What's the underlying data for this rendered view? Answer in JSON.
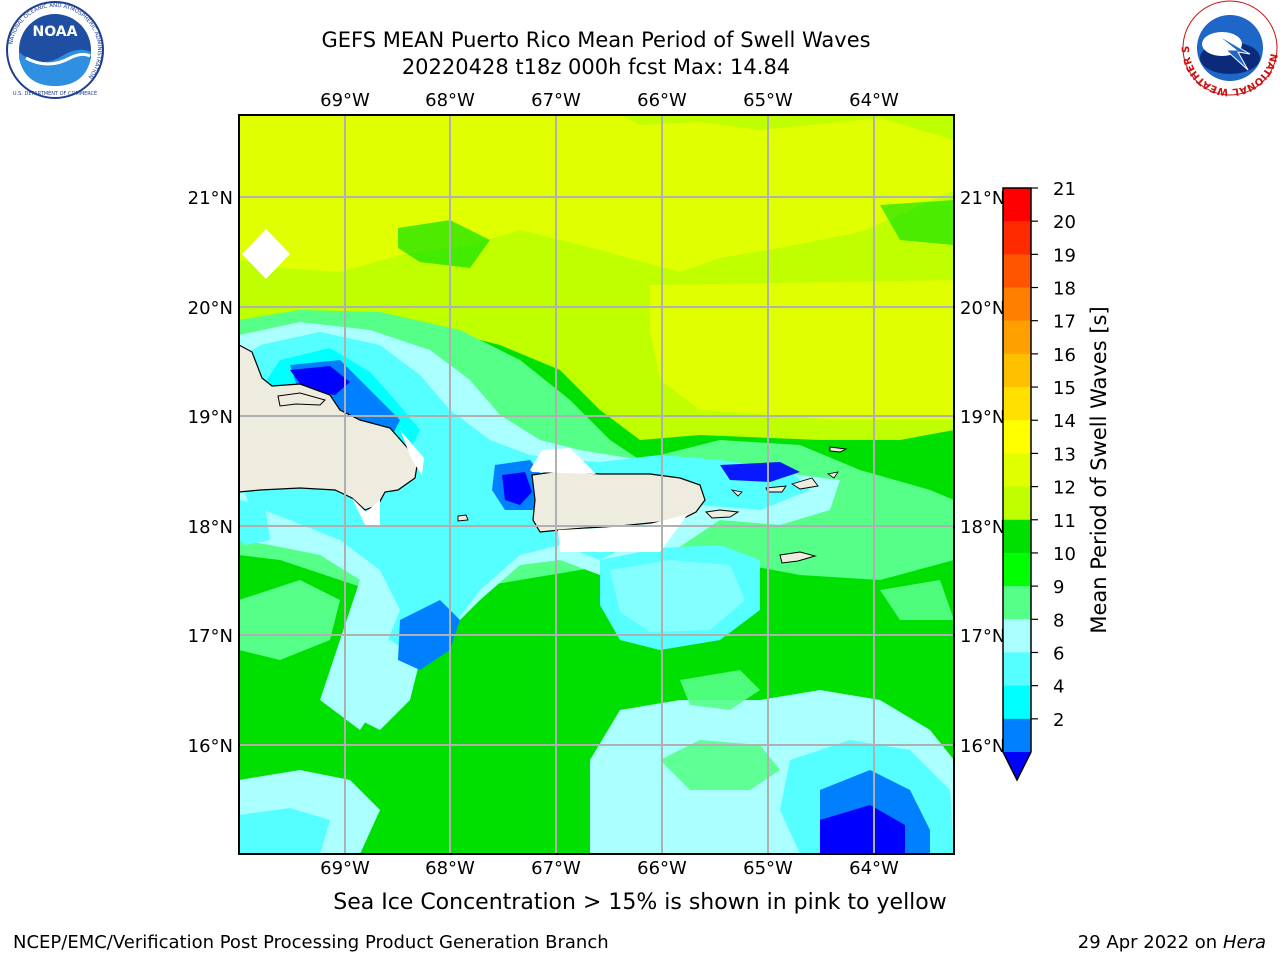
{
  "header": {
    "title_line1": "GEFS MEAN Puerto Rico Mean Period of Swell Waves",
    "title_line2": "20220428 t18z 000h fcst   Max: 14.84"
  },
  "logos": {
    "left": {
      "text": "NOAA",
      "ring_text": "NATIONAL OCEANIC AND ATMOSPHERIC ADMINISTRATION",
      "bottom_text": "U.S. DEPARTMENT OF COMMERCE"
    },
    "right": {
      "ring_text": "NATIONAL WEATHER SERVICE"
    }
  },
  "map": {
    "lon_labels": [
      "69°W",
      "68°W",
      "67°W",
      "66°W",
      "65°W",
      "64°W"
    ],
    "lat_labels": [
      "21°N",
      "20°N",
      "19°N",
      "18°N",
      "17°N",
      "16°N"
    ],
    "colors": {
      "land": "#eeecdf",
      "grid": "#b0b0b0"
    }
  },
  "colorbar": {
    "label": "Mean Period of Swell Waves [s]",
    "ticks": [
      "21",
      "20",
      "19",
      "18",
      "17",
      "16",
      "15",
      "14",
      "13",
      "12",
      "11",
      "10",
      "9",
      "8",
      "6",
      "4",
      "2"
    ],
    "colors": [
      "#ff0000",
      "#ff2a00",
      "#ff5500",
      "#ff7f00",
      "#ffa000",
      "#ffc000",
      "#ffe000",
      "#ffff00",
      "#e0ff00",
      "#bfff00",
      "#00e000",
      "#00ff00",
      "#55ff88",
      "#aaffff",
      "#55ffff",
      "#00ffff",
      "#007fff"
    ],
    "underflow_color": "#0000ff"
  },
  "subtitle": "Sea Ice Concentration > 15% is shown in pink to yellow",
  "footer": {
    "left": "NCEP/EMC/Verification Post Processing Product Generation Branch",
    "right_date": "29 Apr 2022 on ",
    "right_machine": "Hera"
  }
}
